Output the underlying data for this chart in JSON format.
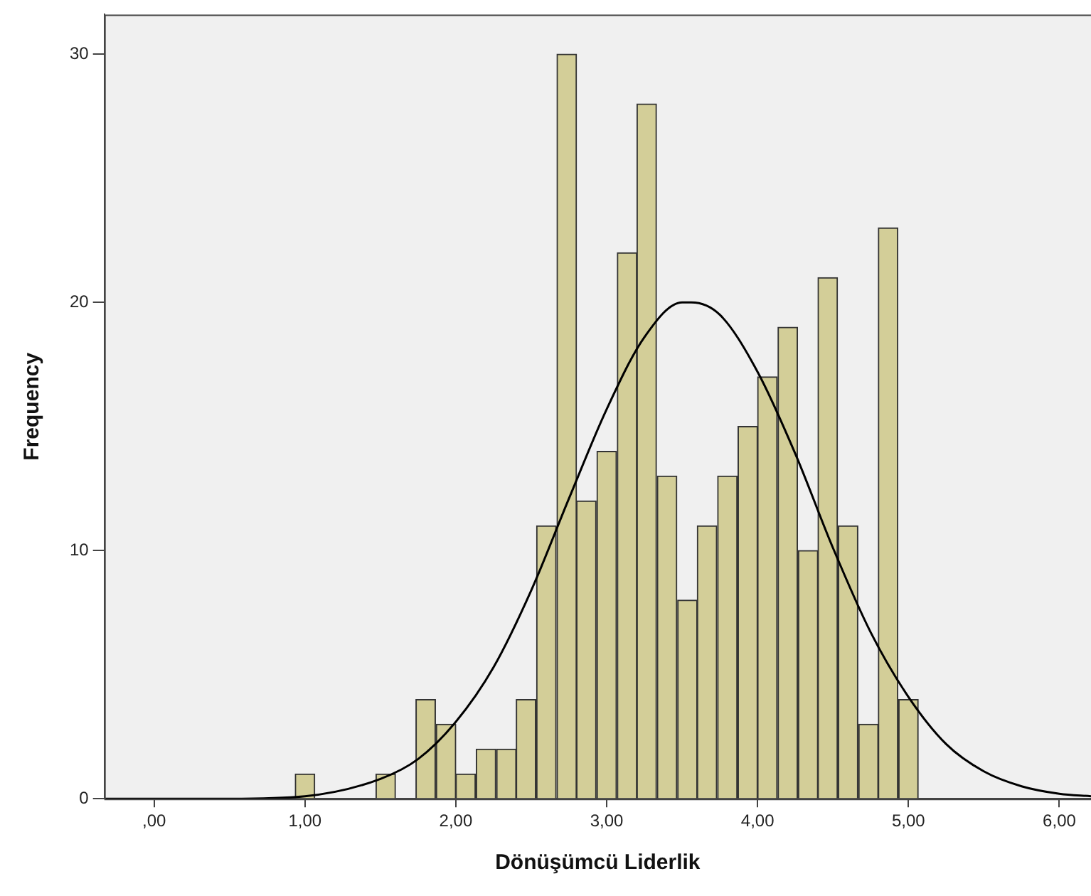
{
  "chart_data": {
    "type": "histogram",
    "xlabel": "Dönüşümcü Liderlik",
    "ylabel": "Frequency",
    "color": "#d3ce98",
    "bins": [
      0.93,
      1.07,
      1.2,
      1.33,
      1.47,
      1.6,
      1.73,
      1.87,
      2.0,
      2.13,
      2.27,
      2.4,
      2.53,
      2.67,
      2.8,
      2.93,
      3.07,
      3.2,
      3.33,
      3.47,
      3.6,
      3.73,
      3.87,
      4.0,
      4.13,
      4.27,
      4.4,
      4.53,
      4.67,
      4.8,
      4.93,
      5.07
    ],
    "values": [
      1,
      0,
      0,
      0,
      1,
      0,
      4,
      3,
      1,
      2,
      2,
      4,
      11,
      30,
      12,
      14,
      22,
      28,
      13,
      8,
      11,
      13,
      15,
      17,
      19,
      10,
      21,
      11,
      3,
      23,
      4
    ],
    "series": [
      {
        "type": "line",
        "color": "#000000",
        "marker": "none",
        "x": [
          -0.33,
          0.5,
          1.0,
          1.5,
          1.75,
          2.0,
          2.25,
          2.5,
          2.75,
          3.0,
          3.25,
          3.5,
          3.56,
          3.75,
          4.0,
          4.25,
          4.5,
          4.75,
          5.0,
          5.25,
          5.5,
          5.75,
          6.0,
          6.21
        ],
        "values": [
          0,
          0,
          0.1,
          0.8,
          1.6,
          3.1,
          5.3,
          8.4,
          12.1,
          15.7,
          18.6,
          20,
          20,
          19.5,
          17.2,
          13.9,
          10.1,
          6.7,
          4.1,
          2.2,
          1.1,
          0.5,
          0.2,
          0.1
        ]
      }
    ],
    "xlim": [
      -0.33,
      6.21
    ],
    "xticks": [
      {
        "value": 0,
        "label": ",00"
      },
      {
        "value": 1,
        "label": "1,00"
      },
      {
        "value": 2,
        "label": "2,00"
      },
      {
        "value": 3,
        "label": "3,00"
      },
      {
        "value": 4,
        "label": "4,00"
      },
      {
        "value": 5,
        "label": "5,00"
      },
      {
        "value": 6,
        "label": "6,00"
      }
    ],
    "ylim": [
      0,
      31.6
    ],
    "yticks": [
      0,
      10,
      20,
      30
    ],
    "grid": false,
    "legend": false
  }
}
